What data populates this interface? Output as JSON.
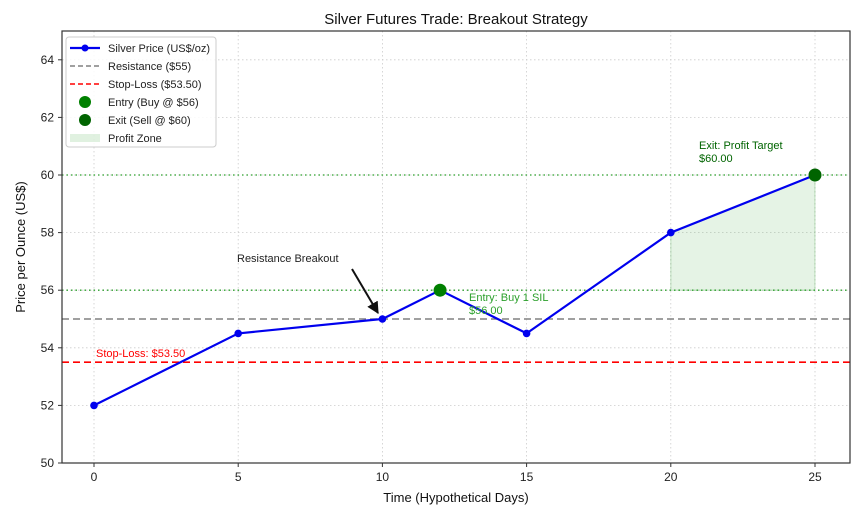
{
  "chart_data": {
    "type": "line",
    "title": "Silver Futures Trade: Breakout Strategy",
    "xlabel": "Time (Hypothetical Days)",
    "ylabel": "Price per Ounce (US$)",
    "xlim": [
      -2.2,
      25.2
    ],
    "ylim": [
      50,
      65
    ],
    "xticks": [
      0,
      5,
      10,
      15,
      20,
      25
    ],
    "yticks": [
      50,
      52,
      54,
      56,
      58,
      60,
      62,
      64
    ],
    "grid": true,
    "legend_position": "upper left",
    "series": [
      {
        "name": "Silver Price (US$/oz)",
        "x": [
          0,
          5,
          10,
          12,
          15,
          20,
          25
        ],
        "values": [
          52,
          54.5,
          55,
          56,
          54.5,
          58,
          60
        ],
        "color": "#0000ee"
      }
    ],
    "hlines": [
      {
        "name": "Resistance ($55)",
        "y": 55,
        "color": "#808080",
        "style": "dashed"
      },
      {
        "name": "Stop-Loss ($53.50)",
        "y": 53.5,
        "color": "#ff0000",
        "style": "dashed"
      },
      {
        "name": "entry-level",
        "y": 56,
        "color": "#2ca02c",
        "style": "dotted"
      },
      {
        "name": "exit-level",
        "y": 60,
        "color": "#2ca02c",
        "style": "dotted"
      }
    ],
    "markers": [
      {
        "name": "Entry (Buy @ $56)",
        "x": 12,
        "y": 56,
        "color": "#008000"
      },
      {
        "name": "Exit (Sell @ $60)",
        "x": 25,
        "y": 60,
        "color": "#006400"
      }
    ],
    "profit_zone": {
      "name": "Profit Zone",
      "x": [
        20,
        25
      ],
      "y_base": 56,
      "color": "#2ca02c"
    },
    "annotations": [
      {
        "text": "Resistance Breakout",
        "x": 10,
        "y": 55,
        "text_x": 5,
        "text_y": 57.1,
        "color": "#222222",
        "arrow": true
      },
      {
        "text_lines": [
          "Entry: Buy 1 SIL",
          "$56.00"
        ],
        "x": 13,
        "y": 55.8,
        "color": "#2ca02c"
      },
      {
        "text_lines": [
          "Exit: Profit Target",
          "$60.00"
        ],
        "x": 21,
        "y": 60.8,
        "color": "#006400"
      },
      {
        "text": "Stop-Loss: $53.50",
        "x": 0,
        "y": 53.7,
        "color": "#ff0000"
      }
    ],
    "legend": [
      {
        "label": "Silver Price (US$/oz)",
        "kind": "line-marker",
        "color": "#0000ee"
      },
      {
        "label": "Resistance ($55)",
        "kind": "dashed",
        "color": "#808080"
      },
      {
        "label": "Stop-Loss ($53.50)",
        "kind": "dashed",
        "color": "#ff0000"
      },
      {
        "label": "Entry (Buy @ $56)",
        "kind": "dot",
        "color": "#008000"
      },
      {
        "label": "Exit (Sell @ $60)",
        "kind": "dot",
        "color": "#006400"
      },
      {
        "label": "Profit Zone",
        "kind": "patch",
        "color": "#2ca02c"
      }
    ]
  }
}
